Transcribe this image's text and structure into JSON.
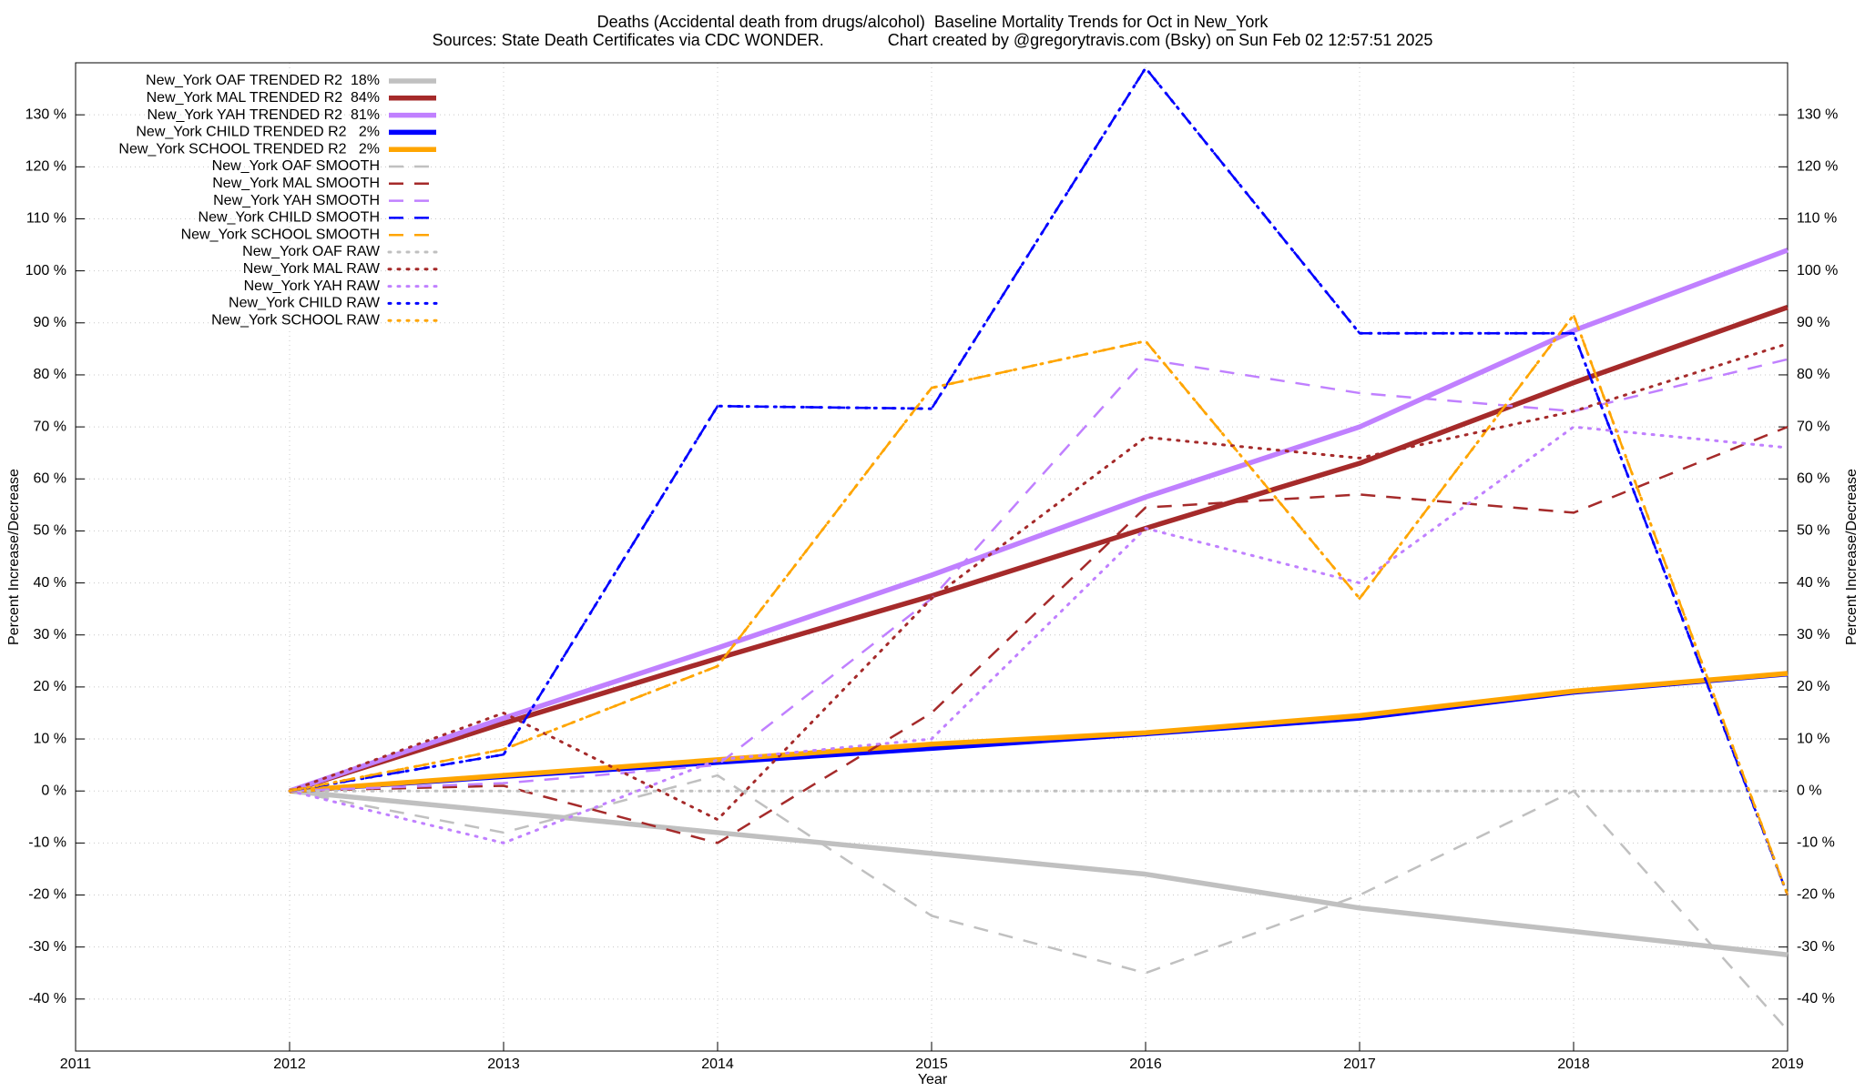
{
  "chart_data": {
    "type": "line",
    "title": "Deaths (Accidental death from drugs/alcohol)  Baseline Mortality Trends for Oct in New_York",
    "subtitle": "Sources: State Death Certificates via CDC WONDER.              Chart created by @gregorytravis.com (Bsky) on Sun Feb 02 12:57:51 2025",
    "x_label": "Year",
    "y_label": "Percent Increase/Decrease",
    "y2_label": "Percent Increase/Decrease",
    "grid": true,
    "legend": "top-left",
    "x": [
      2012,
      2013,
      2014,
      2015,
      2016,
      2017,
      2018,
      2019
    ],
    "xlim": [
      2011,
      2019
    ],
    "xticks": [
      2011,
      2012,
      2013,
      2014,
      2015,
      2016,
      2017,
      2018,
      2019
    ],
    "ylim": [
      -50,
      140
    ],
    "yticks": [
      {
        "value": -40,
        "label": "-40 %"
      },
      {
        "value": -30,
        "label": "-30 %"
      },
      {
        "value": -20,
        "label": "-20 %"
      },
      {
        "value": -10,
        "label": "-10 %"
      },
      {
        "value": 0,
        "label": "0 %"
      },
      {
        "value": 10,
        "label": "10 %"
      },
      {
        "value": 20,
        "label": "20 %"
      },
      {
        "value": 30,
        "label": "30 %"
      },
      {
        "value": 40,
        "label": "40 %"
      },
      {
        "value": 50,
        "label": "50 %"
      },
      {
        "value": 60,
        "label": "60 %"
      },
      {
        "value": 70,
        "label": "70 %"
      },
      {
        "value": 80,
        "label": "80 %"
      },
      {
        "value": 90,
        "label": "90 %"
      },
      {
        "value": 100,
        "label": "100 %"
      },
      {
        "value": 110,
        "label": "110 %"
      },
      {
        "value": 120,
        "label": "120 %"
      },
      {
        "value": 130,
        "label": "130 %"
      }
    ],
    "y2lim": [
      -50,
      140
    ],
    "y2ticks": [
      {
        "value": -40,
        "label": "-40 %"
      },
      {
        "value": -30,
        "label": "-30 %"
      },
      {
        "value": -20,
        "label": "-20 %"
      },
      {
        "value": -10,
        "label": "-10 %"
      },
      {
        "value": 0,
        "label": "0 %"
      },
      {
        "value": 10,
        "label": "10 %"
      },
      {
        "value": 20,
        "label": "20 %"
      },
      {
        "value": 30,
        "label": "30 %"
      },
      {
        "value": 40,
        "label": "40 %"
      },
      {
        "value": 50,
        "label": "50 %"
      },
      {
        "value": 60,
        "label": "60 %"
      },
      {
        "value": 70,
        "label": "70 %"
      },
      {
        "value": 80,
        "label": "80 %"
      },
      {
        "value": 90,
        "label": "90 %"
      },
      {
        "value": 100,
        "label": "100 %"
      },
      {
        "value": 110,
        "label": "110 %"
      },
      {
        "value": 120,
        "label": "120 %"
      },
      {
        "value": 130,
        "label": "130 %"
      }
    ],
    "series": [
      {
        "name": "New_York OAF TRENDED R2  18%",
        "color": "#c0c0c0",
        "style": "solid",
        "values": [
          0,
          -4,
          -8,
          -12,
          -16,
          -22.5,
          -27,
          -31.5
        ]
      },
      {
        "name": "New_York MAL TRENDED R2  84%",
        "color": "#a52a2a",
        "style": "solid",
        "values": [
          0,
          13,
          25.5,
          37.5,
          50.5,
          63,
          78.5,
          93
        ]
      },
      {
        "name": "New_York YAH TRENDED R2  81%",
        "color": "#c080ff",
        "style": "solid",
        "values": [
          0,
          14,
          27.5,
          41.5,
          56.5,
          70,
          88.5,
          104
        ]
      },
      {
        "name": "New_York CHILD TRENDED R2   2%",
        "color": "#0000ff",
        "style": "solid",
        "values": [
          0,
          2.8,
          5.5,
          8.2,
          11,
          14,
          19,
          22.5
        ]
      },
      {
        "name": "New_York SCHOOL TRENDED R2   2%",
        "color": "#ffa500",
        "style": "solid",
        "values": [
          0,
          3,
          6,
          9,
          11.2,
          14.5,
          19.2,
          22.6
        ]
      },
      {
        "name": "New_York OAF SMOOTH",
        "color": "#c0c0c0",
        "style": "dashed",
        "values": [
          0,
          -8,
          3,
          -24,
          -35,
          -20,
          0,
          -46
        ]
      },
      {
        "name": "New_York MAL SMOOTH",
        "color": "#a52a2a",
        "style": "dashed",
        "values": [
          0,
          1,
          -10,
          15,
          54.5,
          57,
          53.5,
          70
        ]
      },
      {
        "name": "New_York YAH SMOOTH",
        "color": "#c080ff",
        "style": "dashed",
        "values": [
          0,
          1.5,
          5,
          37,
          83,
          76.5,
          73,
          83
        ]
      },
      {
        "name": "New_York CHILD SMOOTH",
        "color": "#0000ff",
        "style": "dashed",
        "values": [
          0,
          7,
          74,
          73.5,
          139,
          88,
          88,
          -20
        ]
      },
      {
        "name": "New_York SCHOOL SMOOTH",
        "color": "#ffa500",
        "style": "dashed",
        "values": [
          0,
          8,
          24,
          77.5,
          86.5,
          37,
          91.5,
          -20
        ]
      },
      {
        "name": "New_York OAF RAW",
        "color": "#c0c0c0",
        "style": "dotted",
        "values": [
          0,
          0,
          0,
          0,
          0,
          0,
          0,
          0
        ]
      },
      {
        "name": "New_York MAL RAW",
        "color": "#a52a2a",
        "style": "dotted",
        "values": [
          0,
          15,
          -5.5,
          37,
          68,
          64,
          73,
          86
        ]
      },
      {
        "name": "New_York YAH RAW",
        "color": "#c080ff",
        "style": "dotted",
        "values": [
          0,
          -10,
          6,
          10,
          50.5,
          40,
          70,
          66
        ]
      },
      {
        "name": "New_York CHILD RAW",
        "color": "#0000ff",
        "style": "dotted",
        "values": [
          0,
          7,
          74,
          73.5,
          139,
          88,
          88,
          -20
        ]
      },
      {
        "name": "New_York SCHOOL RAW",
        "color": "#ffa500",
        "style": "dotted",
        "values": [
          0,
          8,
          24,
          77.5,
          86.5,
          37,
          91.5,
          -20
        ]
      }
    ]
  }
}
